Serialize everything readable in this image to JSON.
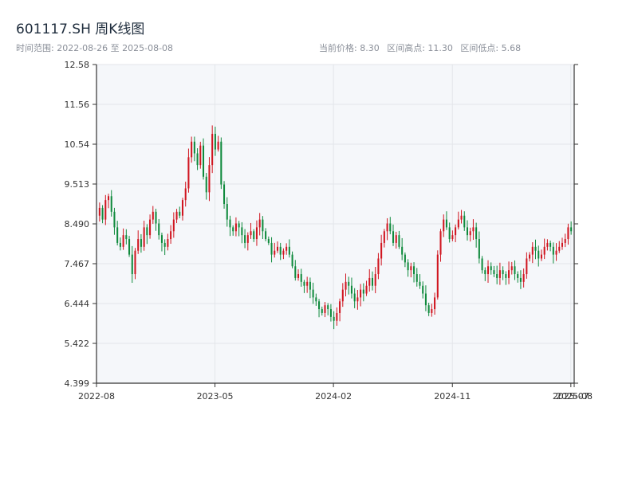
{
  "header": {
    "title": "601117.SH 周K线图",
    "range_label": "时间范围: 2022-08-26 至 2025-08-08",
    "current_label": "当前价格: 8.30",
    "high_label": "区间高点: 11.30",
    "low_label": "区间低点: 5.68"
  },
  "colors": {
    "up": "#d0151f",
    "down": "#0f8a3c",
    "plot_bg": "#f5f7fa",
    "grid": "#e3e6ea",
    "axis": "#333333"
  },
  "chart_data": {
    "type": "candlestick",
    "title": "601117.SH 周K线图",
    "ylim": [
      4.399,
      12.58
    ],
    "y_ticks": [
      "12.58",
      "11.56",
      "10.54",
      "9.513",
      "8.490",
      "7.467",
      "6.444",
      "5.422",
      "4.399"
    ],
    "x_ticks": [
      {
        "label": "2022-08",
        "t": 0.0
      },
      {
        "label": "2023-05",
        "t": 0.248
      },
      {
        "label": "2024-02",
        "t": 0.496
      },
      {
        "label": "2024-11",
        "t": 0.745
      },
      {
        "label": "2025-07",
        "t": 0.993
      },
      {
        "label": "2025-08",
        "t": 1.0
      }
    ],
    "grid": true,
    "weekly_closes": [
      8.9,
      8.6,
      9.1,
      9.2,
      8.8,
      8.4,
      8.0,
      7.9,
      8.2,
      8.1,
      7.7,
      7.2,
      7.8,
      8.1,
      7.9,
      8.4,
      8.2,
      8.6,
      8.8,
      8.5,
      8.2,
      8.0,
      7.9,
      8.1,
      8.3,
      8.6,
      8.8,
      8.7,
      9.1,
      9.4,
      10.2,
      10.6,
      10.3,
      10.0,
      10.5,
      9.7,
      9.3,
      10.0,
      10.8,
      10.4,
      10.6,
      9.5,
      9.0,
      8.6,
      8.4,
      8.3,
      8.5,
      8.4,
      8.2,
      8.0,
      8.2,
      8.3,
      8.1,
      8.4,
      8.6,
      8.3,
      8.1,
      8.0,
      7.7,
      7.8,
      7.9,
      7.7,
      7.8,
      7.9,
      7.7,
      7.4,
      7.1,
      7.2,
      7.0,
      6.9,
      7.0,
      6.8,
      6.6,
      6.5,
      6.3,
      6.2,
      6.4,
      6.3,
      6.1,
      6.0,
      6.2,
      6.5,
      6.8,
      7.0,
      6.9,
      6.7,
      6.5,
      6.6,
      6.8,
      6.7,
      6.9,
      7.1,
      6.9,
      7.2,
      7.6,
      8.0,
      8.3,
      8.5,
      8.3,
      8.0,
      8.2,
      7.9,
      7.7,
      7.5,
      7.3,
      7.4,
      7.2,
      7.0,
      6.9,
      6.7,
      6.4,
      6.2,
      6.3,
      6.6,
      7.7,
      8.3,
      8.6,
      8.4,
      8.1,
      8.2,
      8.4,
      8.6,
      8.7,
      8.4,
      8.2,
      8.3,
      8.4,
      8.1,
      7.6,
      7.3,
      7.2,
      7.4,
      7.3,
      7.2,
      7.1,
      7.3,
      7.2,
      7.1,
      7.3,
      7.4,
      7.2,
      7.1,
      7.0,
      7.2,
      7.6,
      7.7,
      7.9,
      7.8,
      7.6,
      7.7,
      7.9,
      8.0,
      7.9,
      7.7,
      7.8,
      7.9,
      8.0,
      8.1,
      8.4,
      8.3
    ]
  }
}
